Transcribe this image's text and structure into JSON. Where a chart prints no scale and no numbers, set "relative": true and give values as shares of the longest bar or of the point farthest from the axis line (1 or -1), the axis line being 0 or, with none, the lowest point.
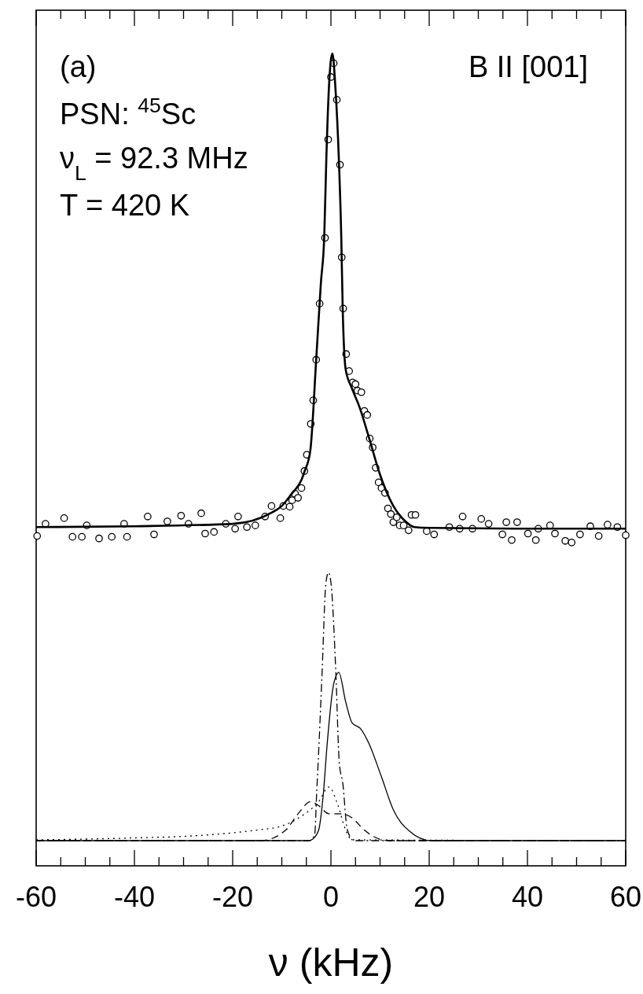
{
  "chart_data": {
    "type": "line",
    "relative": true,
    "xlabel": "ν (kHz)",
    "annotations": [
      "(a)",
      "PSN: $^{45}$Sc",
      "ν$_{L}$ = 92.3 MHz",
      "T = 420 K",
      "B II [001]"
    ],
    "xlim": [
      -60,
      60
    ],
    "xticks": [
      -60,
      {
        "value": -55,
        "label": null
      },
      {
        "value": -50,
        "label": null
      },
      {
        "value": -45,
        "label": null
      },
      -40,
      {
        "value": -35,
        "label": null
      },
      {
        "value": -30,
        "label": null
      },
      {
        "value": -25,
        "label": null
      },
      -20,
      {
        "value": -15,
        "label": null
      },
      {
        "value": -10,
        "label": null
      },
      {
        "value": -5,
        "label": null
      },
      0,
      {
        "value": 5,
        "label": null
      },
      {
        "value": 10,
        "label": null
      },
      {
        "value": 15,
        "label": null
      },
      20,
      {
        "value": 25,
        "label": null
      },
      {
        "value": 30,
        "label": null
      },
      {
        "value": 35,
        "label": null
      },
      40,
      {
        "value": 45,
        "label": null
      },
      {
        "value": 50,
        "label": null
      },
      {
        "value": 55,
        "label": null
      },
      60
    ],
    "grid": false,
    "series": [
      {
        "type": "scatter",
        "marker": "circle",
        "color": "#000000",
        "x": [
          -59.8,
          -58.1,
          -54.3,
          -52.6,
          -50.7,
          -49.7,
          -47.2,
          -44.6,
          -42.1,
          -41.5,
          -37.3,
          -36.0,
          -33.3,
          -30.5,
          -29.0,
          -26.4,
          -25.6,
          -23.8,
          -21.4,
          -19.5,
          -18.9,
          -17.1,
          -15.4,
          -13.4,
          -12.1,
          -10.3,
          -9.7,
          -8.4,
          -7.9,
          -7.3,
          -6.7,
          -6.0,
          -5.4,
          -4.9,
          -4.1,
          -3.6,
          -3.0,
          -2.3,
          -1.2,
          -0.56,
          0,
          0.56,
          1.2,
          1.84,
          2.2,
          2.5,
          3.1,
          3.7,
          4.4,
          5.0,
          5.4,
          6.2,
          6.8,
          7.4,
          7.9,
          8.5,
          9.1,
          9.7,
          10.3,
          11.0,
          11.6,
          12.2,
          12.7,
          13.4,
          14.0,
          14.8,
          15.8,
          16.4,
          17.2,
          19.5,
          21.0,
          24.1,
          26.2,
          26.8,
          28.8,
          30.6,
          32.1,
          34.9,
          35.7,
          36.8,
          37.9,
          40.1,
          41.7,
          42.2,
          44.6,
          45.6,
          47.7,
          49.0,
          50.7,
          52.8,
          54.5,
          56.3,
          58.3,
          60.0
        ],
        "values": [
          0.406,
          0.421,
          0.428,
          0.405,
          0.405,
          0.419,
          0.403,
          0.405,
          0.421,
          0.405,
          0.43,
          0.408,
          0.424,
          0.431,
          0.421,
          0.434,
          0.409,
          0.411,
          0.421,
          0.415,
          0.43,
          0.417,
          0.419,
          0.43,
          0.443,
          0.428,
          0.443,
          0.442,
          0.45,
          0.458,
          0.453,
          0.465,
          0.486,
          0.506,
          0.544,
          0.573,
          0.623,
          0.692,
          0.773,
          0.894,
          0.971,
          0.988,
          0.943,
          0.863,
          0.749,
          0.686,
          0.63,
          0.609,
          0.595,
          0.593,
          0.585,
          0.583,
          0.56,
          0.555,
          0.526,
          0.515,
          0.49,
          0.472,
          0.465,
          0.459,
          0.44,
          0.433,
          0.423,
          0.429,
          0.419,
          0.419,
          0.413,
          0.432,
          0.432,
          0.412,
          0.408,
          0.417,
          0.415,
          0.43,
          0.415,
          0.427,
          0.421,
          0.408,
          0.423,
          0.401,
          0.423,
          0.409,
          0.401,
          0.415,
          0.419,
          0.409,
          0.4,
          0.398,
          0.408,
          0.418,
          0.406,
          0.42,
          0.417,
          0.407
        ]
      },
      {
        "line_style": "solid",
        "color": "#000000",
        "x": [
          -60,
          -40,
          -20,
          -12,
          -10,
          -8,
          -6,
          -5.4,
          -4.2,
          -3.0,
          -2.05,
          -1.36,
          -0.93,
          -0.4,
          0.3,
          0.9,
          1.6,
          2.1,
          2.4,
          3.0,
          4.2,
          5.8,
          7.9,
          9.8,
          12.7,
          15,
          17,
          20,
          40,
          60
        ],
        "values": [
          0.417,
          0.418,
          0.421,
          0.435,
          0.443,
          0.458,
          0.475,
          0.485,
          0.511,
          0.623,
          0.717,
          0.775,
          0.872,
          0.959,
          1,
          0.959,
          0.872,
          0.775,
          0.685,
          0.611,
          0.589,
          0.565,
          0.524,
          0.485,
          0.443,
          0.425,
          0.417,
          0.416,
          0.415,
          0.415
        ]
      },
      {
        "line_style": "dashdot",
        "color": "#000000",
        "x": [
          -60,
          -4.3,
          -3.3,
          -2.9,
          -2.6,
          -1.8,
          -1.04,
          -0.5,
          0.03,
          1.0,
          1.7,
          2.45,
          3.3,
          4.7,
          60
        ],
        "values": [
          0.031,
          0.031,
          0.039,
          0.09,
          0.127,
          0.238,
          0.347,
          0.361,
          0.347,
          0.238,
          0.127,
          0.1,
          0.045,
          0.031,
          0.031
        ]
      },
      {
        "line_style": "solid",
        "color": "#000000",
        "x": [
          -60,
          -4.6,
          -3.7,
          -2.5,
          -1.6,
          -0.75,
          0.5,
          1.6,
          3.0,
          4.3,
          6.0,
          7.7,
          10.2,
          12.7,
          16.1,
          20.3,
          60
        ],
        "values": [
          0.031,
          0.031,
          0.033,
          0.044,
          0.085,
          0.151,
          0.222,
          0.238,
          0.202,
          0.176,
          0.169,
          0.151,
          0.111,
          0.069,
          0.042,
          0.031,
          0.031
        ]
      },
      {
        "line_style": "dashed",
        "color": "#000000",
        "x": [
          -60,
          -14.2,
          -9.2,
          -6.7,
          -4.1,
          -2.5,
          -0.4,
          2.2,
          4.3,
          6.8,
          9.8,
          11.9,
          60
        ],
        "values": [
          0.031,
          0.031,
          0.044,
          0.064,
          0.079,
          0.074,
          0.064,
          0.064,
          0.059,
          0.044,
          0.033,
          0.031,
          0.031
        ]
      },
      {
        "line_style": "dotted",
        "color": "#000000",
        "x": [
          -60,
          -42,
          -25.2,
          -15.1,
          -10,
          -5.8,
          -2.5,
          -0.4,
          1.4,
          3.0,
          4.3,
          60
        ],
        "values": [
          0.032,
          0.034,
          0.038,
          0.044,
          0.049,
          0.062,
          0.079,
          0.097,
          0.075,
          0.044,
          0.032,
          0.031
        ]
      }
    ]
  }
}
